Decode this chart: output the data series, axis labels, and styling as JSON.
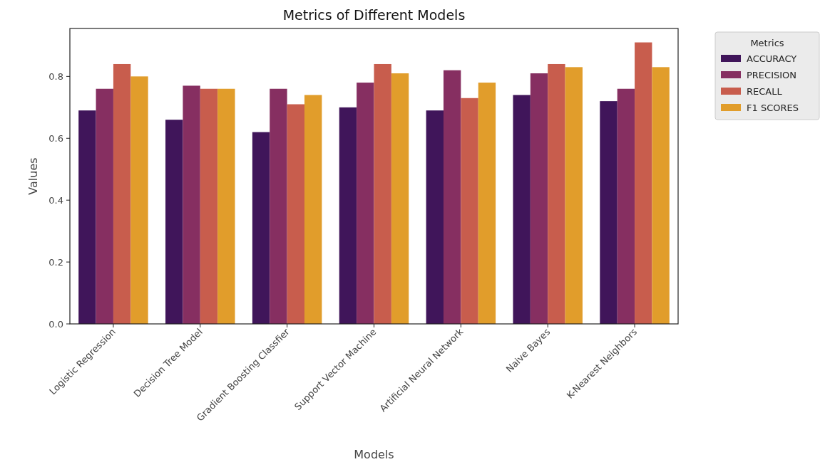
{
  "chart_data": {
    "type": "bar",
    "title": "Metrics of Different Models",
    "xlabel": "Models",
    "ylabel": "Values",
    "legend_title": "Metrics",
    "legend": "top right",
    "categories": [
      "Logistic Regression",
      "Decision Tree Model",
      "Gradient Boosting Classfier",
      "Support Vector Machine",
      "Artificial Neural Network",
      "Naive Bayes",
      "K-Nearest Neighbors"
    ],
    "series": [
      {
        "name": "ACCURACY",
        "color": "#40155a",
        "values": [
          0.69,
          0.66,
          0.62,
          0.7,
          0.69,
          0.74,
          0.72
        ]
      },
      {
        "name": "PRECISION",
        "color": "#862f61",
        "values": [
          0.76,
          0.77,
          0.76,
          0.78,
          0.82,
          0.81,
          0.76
        ]
      },
      {
        "name": "RECALL",
        "color": "#c85d4d",
        "values": [
          0.84,
          0.76,
          0.71,
          0.84,
          0.73,
          0.84,
          0.91
        ]
      },
      {
        "name": "F1 SCORES",
        "color": "#e19d2b",
        "values": [
          0.8,
          0.76,
          0.74,
          0.81,
          0.78,
          0.83,
          0.83
        ]
      }
    ],
    "ylim": [
      0,
      0.955
    ],
    "yticks": [
      {
        "value": 0,
        "label": "0.0"
      },
      {
        "value": 0.2,
        "label": "0.2"
      },
      {
        "value": 0.4,
        "label": "0.4"
      },
      {
        "value": 0.6,
        "label": "0.6"
      },
      {
        "value": 0.8,
        "label": "0.8"
      }
    ]
  }
}
